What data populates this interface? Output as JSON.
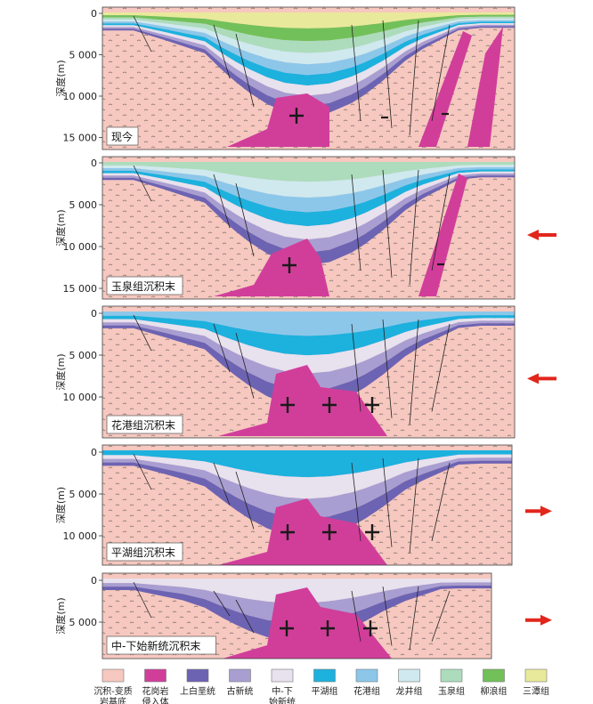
{
  "depth_axis_title": "深度(m)",
  "colors": {
    "basement": "#f6c8bf",
    "granite": "#d13e9a",
    "shangbaiyang": "#6d63b3",
    "paleogene": "#a99ed1",
    "zhongxia": "#e8e1ee",
    "pinghu": "#1db1de",
    "huagang": "#8cc7ea",
    "longjing": "#cfe9ef",
    "yuquan": "#acdcbc",
    "liulang": "#72c05a",
    "santan": "#e9e99b",
    "arrow": "#e2261c"
  },
  "panels": [
    {
      "name": "现今",
      "ticks": [
        "0",
        "5 000",
        "10 000",
        "15 000"
      ],
      "arrow": "none"
    },
    {
      "name": "玉泉组沉积末",
      "ticks": [
        "0",
        "5 000",
        "10 000",
        "15 000"
      ],
      "arrow": "left"
    },
    {
      "name": "花港组沉积末",
      "ticks": [
        "0",
        "5 000",
        "10 000"
      ],
      "arrow": "left"
    },
    {
      "name": "平湖组沉积末",
      "ticks": [
        "0",
        "5 000",
        "10 000"
      ],
      "arrow": "right"
    },
    {
      "name": "中-下始新统沉积末",
      "ticks": [
        "0",
        "5 000"
      ],
      "arrow": "right"
    }
  ],
  "legend": [
    {
      "key": "basement",
      "lines": [
        "沉积-变质",
        "岩基底"
      ]
    },
    {
      "key": "granite",
      "lines": [
        "花岗岩",
        "侵入体"
      ]
    },
    {
      "key": "shangbaiyang",
      "lines": [
        "上白垩统"
      ]
    },
    {
      "key": "paleogene",
      "lines": [
        "古新统"
      ]
    },
    {
      "key": "zhongxia",
      "lines": [
        "中-下",
        "始新统"
      ]
    },
    {
      "key": "pinghu",
      "lines": [
        "平湖组"
      ]
    },
    {
      "key": "huagang",
      "lines": [
        "花港组"
      ]
    },
    {
      "key": "longjing",
      "lines": [
        "龙井组"
      ]
    },
    {
      "key": "yuquan",
      "lines": [
        "玉泉组"
      ]
    },
    {
      "key": "liulang",
      "lines": [
        "柳浪组"
      ]
    },
    {
      "key": "santan",
      "lines": [
        "三潭组"
      ]
    }
  ]
}
